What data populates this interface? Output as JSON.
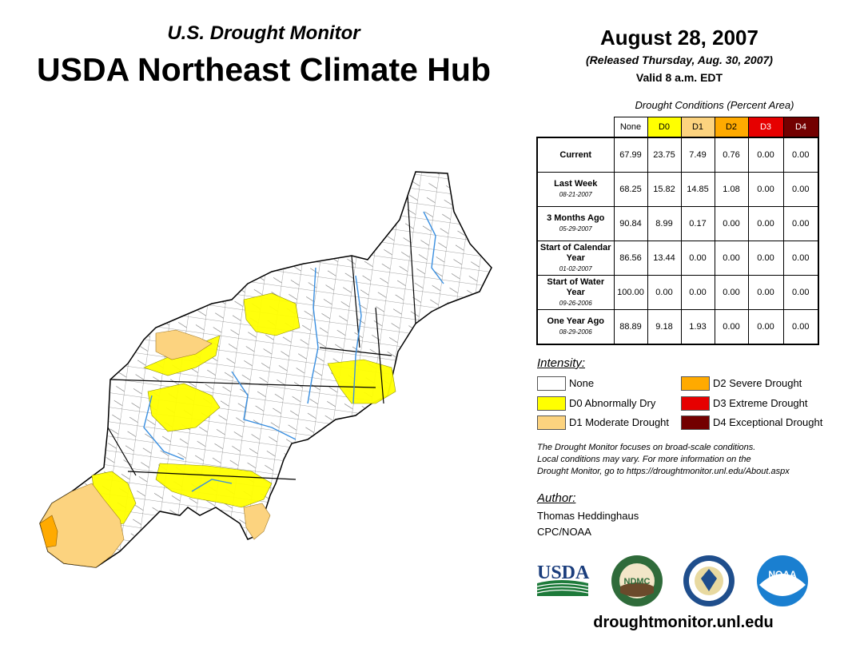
{
  "header": {
    "subtitle": "U.S. Drought Monitor",
    "title": "USDA Northeast Climate Hub",
    "date": "August 28, 2007",
    "released": "(Released Thursday, Aug. 30, 2007)",
    "valid": "Valid 8 a.m. EDT"
  },
  "table": {
    "caption": "Drought Conditions (Percent Area)",
    "columns": [
      "None",
      "D0",
      "D1",
      "D2",
      "D3",
      "D4"
    ],
    "column_colors": [
      "#ffffff",
      "#ffff00",
      "#fcd37f",
      "#ffaa00",
      "#e60000",
      "#730000"
    ],
    "rows": [
      {
        "label": "Current",
        "date": "",
        "values": [
          "67.99",
          "23.75",
          "7.49",
          "0.76",
          "0.00",
          "0.00"
        ]
      },
      {
        "label": "Last Week",
        "date": "08-21-2007",
        "values": [
          "68.25",
          "15.82",
          "14.85",
          "1.08",
          "0.00",
          "0.00"
        ]
      },
      {
        "label": "3 Months Ago",
        "date": "05-29-2007",
        "values": [
          "90.84",
          "8.99",
          "0.17",
          "0.00",
          "0.00",
          "0.00"
        ]
      },
      {
        "label": "Start of Calendar Year",
        "date": "01-02-2007",
        "values": [
          "86.56",
          "13.44",
          "0.00",
          "0.00",
          "0.00",
          "0.00"
        ]
      },
      {
        "label": "Start of Water Year",
        "date": "09-26-2006",
        "values": [
          "100.00",
          "0.00",
          "0.00",
          "0.00",
          "0.00",
          "0.00"
        ]
      },
      {
        "label": "One Year Ago",
        "date": "08-29-2006",
        "values": [
          "88.89",
          "9.18",
          "1.93",
          "0.00",
          "0.00",
          "0.00"
        ]
      }
    ]
  },
  "legend": {
    "title": "Intensity:",
    "items": [
      {
        "label": "None",
        "color": "#ffffff"
      },
      {
        "label": "D0 Abnormally Dry",
        "color": "#ffff00"
      },
      {
        "label": "D1 Moderate Drought",
        "color": "#fcd37f"
      },
      {
        "label": "D2 Severe Drought",
        "color": "#ffaa00"
      },
      {
        "label": "D3 Extreme Drought",
        "color": "#e60000"
      },
      {
        "label": "D4 Exceptional Drought",
        "color": "#730000"
      }
    ]
  },
  "note": {
    "line1": "The Drought Monitor focuses on broad-scale conditions.",
    "line2": "Local conditions may vary. For more information on the",
    "line3": "Drought Monitor, go to https://droughtmonitor.unl.edu/About.aspx"
  },
  "author": {
    "title": "Author:",
    "name": "Thomas Heddinghaus",
    "org": "CPC/NOAA"
  },
  "logos": {
    "usda": "USDA",
    "ndmc": "NDMC",
    "noaa": "NOAA"
  },
  "footer": {
    "site": "droughtmonitor.unl.edu"
  }
}
